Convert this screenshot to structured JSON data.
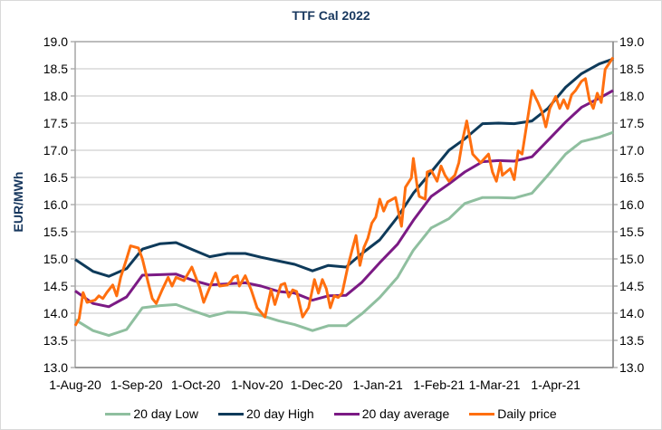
{
  "chart_data": {
    "type": "line",
    "title": "TTF Cal 2022",
    "ylabel": "EUR/MWh",
    "ylabel_right": "",
    "xlabel": "",
    "ylim": [
      13.0,
      19.0
    ],
    "yticks": [
      "13.0",
      "13.5",
      "14.0",
      "14.5",
      "15.0",
      "15.5",
      "16.0",
      "16.5",
      "17.0",
      "17.5",
      "18.0",
      "18.5",
      "19.0"
    ],
    "xlim": [
      "2020-08-01",
      "2021-04-30"
    ],
    "xticks": [
      {
        "date": "2020-08-01",
        "label": "1-Aug-20"
      },
      {
        "date": "2020-09-01",
        "label": "1-Sep-20"
      },
      {
        "date": "2020-10-01",
        "label": "1-Oct-20"
      },
      {
        "date": "2020-11-01",
        "label": "1-Nov-20"
      },
      {
        "date": "2020-12-01",
        "label": "1-Dec-20"
      },
      {
        "date": "2021-01-01",
        "label": "1-Jan-21"
      },
      {
        "date": "2021-02-01",
        "label": "1-Feb-21"
      },
      {
        "date": "2021-03-01",
        "label": "1-Mar-21"
      },
      {
        "date": "2021-04-01",
        "label": "1-Apr-21"
      }
    ],
    "grid": true,
    "legend_position": "bottom",
    "dual_axis_mirrored": true,
    "x": [
      "2020-08-01",
      "2020-08-10",
      "2020-08-18",
      "2020-08-27",
      "2020-09-04",
      "2020-09-13",
      "2020-09-21",
      "2020-09-30",
      "2020-10-08",
      "2020-10-17",
      "2020-10-26",
      "2020-11-03",
      "2020-11-12",
      "2020-11-20",
      "2020-11-29",
      "2020-12-07",
      "2020-12-16",
      "2020-12-24",
      "2021-01-02",
      "2021-01-11",
      "2021-01-19",
      "2021-01-28",
      "2021-02-06",
      "2021-02-14",
      "2021-02-23",
      "2021-03-03",
      "2021-03-11",
      "2021-03-20",
      "2021-03-28",
      "2021-04-06",
      "2021-04-14",
      "2021-04-23",
      "2021-04-30"
    ],
    "series": [
      {
        "name": "20 day Low",
        "color": "#8fbf9f",
        "values": [
          13.88,
          13.68,
          13.59,
          13.7,
          14.1,
          14.14,
          14.16,
          14.04,
          13.94,
          14.02,
          14.01,
          13.96,
          13.86,
          13.79,
          13.68,
          13.77,
          13.77,
          13.99,
          14.29,
          14.66,
          15.16,
          15.57,
          15.74,
          16.02,
          16.13,
          16.13,
          16.12,
          16.21,
          16.54,
          16.93,
          17.16,
          17.24,
          17.33
        ]
      },
      {
        "name": "20 day High",
        "color": "#0e3a5a",
        "values": [
          14.99,
          14.77,
          14.68,
          14.82,
          15.18,
          15.28,
          15.3,
          15.16,
          15.04,
          15.1,
          15.1,
          15.03,
          14.96,
          14.9,
          14.78,
          14.88,
          14.85,
          15.1,
          15.35,
          15.77,
          16.21,
          16.6,
          17.0,
          17.21,
          17.49,
          17.5,
          17.49,
          17.54,
          17.77,
          18.16,
          18.41,
          18.59,
          18.68
        ]
      },
      {
        "name": "20 day average",
        "color": "#7b1a84",
        "values": [
          14.41,
          14.18,
          14.12,
          14.3,
          14.7,
          14.71,
          14.72,
          14.6,
          14.52,
          14.54,
          14.56,
          14.5,
          14.4,
          14.37,
          14.24,
          14.32,
          14.33,
          14.57,
          14.93,
          15.27,
          15.71,
          16.15,
          16.38,
          16.6,
          16.79,
          16.81,
          16.8,
          16.88,
          17.18,
          17.52,
          17.79,
          17.96,
          18.1
        ]
      },
      {
        "name": "Daily price",
        "color": "#ff6f0f",
        "points": [
          [
            "2020-08-01",
            13.77
          ],
          [
            "2020-08-03",
            13.9
          ],
          [
            "2020-08-05",
            14.38
          ],
          [
            "2020-08-07",
            14.2
          ],
          [
            "2020-08-11",
            14.24
          ],
          [
            "2020-08-13",
            14.32
          ],
          [
            "2020-08-15",
            14.27
          ],
          [
            "2020-08-17",
            14.38
          ],
          [
            "2020-08-20",
            14.52
          ],
          [
            "2020-08-22",
            14.32
          ],
          [
            "2020-08-24",
            14.66
          ],
          [
            "2020-08-27",
            15.0
          ],
          [
            "2020-08-29",
            15.24
          ],
          [
            "2020-09-02",
            15.2
          ],
          [
            "2020-09-04",
            15.0
          ],
          [
            "2020-09-07",
            14.55
          ],
          [
            "2020-09-09",
            14.27
          ],
          [
            "2020-09-11",
            14.18
          ],
          [
            "2020-09-14",
            14.43
          ],
          [
            "2020-09-17",
            14.66
          ],
          [
            "2020-09-19",
            14.5
          ],
          [
            "2020-09-21",
            14.66
          ],
          [
            "2020-09-25",
            14.6
          ],
          [
            "2020-09-29",
            14.85
          ],
          [
            "2020-10-03",
            14.47
          ],
          [
            "2020-10-05",
            14.2
          ],
          [
            "2020-10-08",
            14.47
          ],
          [
            "2020-10-11",
            14.74
          ],
          [
            "2020-10-13",
            14.5
          ],
          [
            "2020-10-17",
            14.52
          ],
          [
            "2020-10-19",
            14.6
          ],
          [
            "2020-10-20",
            14.66
          ],
          [
            "2020-10-22",
            14.69
          ],
          [
            "2020-10-23",
            14.5
          ],
          [
            "2020-10-26",
            14.69
          ],
          [
            "2020-10-29",
            14.43
          ],
          [
            "2020-11-01",
            14.1
          ],
          [
            "2020-11-05",
            13.93
          ],
          [
            "2020-11-08",
            14.43
          ],
          [
            "2020-11-10",
            14.16
          ],
          [
            "2020-11-13",
            14.52
          ],
          [
            "2020-11-15",
            14.55
          ],
          [
            "2020-11-17",
            14.3
          ],
          [
            "2020-11-19",
            14.43
          ],
          [
            "2020-11-21",
            14.4
          ],
          [
            "2020-11-24",
            13.93
          ],
          [
            "2020-11-27",
            14.1
          ],
          [
            "2020-11-30",
            14.62
          ],
          [
            "2020-12-02",
            14.37
          ],
          [
            "2020-12-04",
            14.62
          ],
          [
            "2020-12-06",
            14.45
          ],
          [
            "2020-12-08",
            14.1
          ],
          [
            "2020-12-10",
            14.32
          ],
          [
            "2020-12-12",
            14.29
          ],
          [
            "2020-12-14",
            14.37
          ],
          [
            "2020-12-17",
            14.88
          ],
          [
            "2020-12-19",
            15.16
          ],
          [
            "2020-12-21",
            15.43
          ],
          [
            "2020-12-23",
            14.88
          ],
          [
            "2020-12-25",
            15.21
          ],
          [
            "2020-12-27",
            15.38
          ],
          [
            "2020-12-29",
            15.66
          ],
          [
            "2020-12-31",
            15.77
          ],
          [
            "2021-01-02",
            16.1
          ],
          [
            "2021-01-04",
            15.88
          ],
          [
            "2021-01-06",
            16.05
          ],
          [
            "2021-01-10",
            16.13
          ],
          [
            "2021-01-13",
            15.6
          ],
          [
            "2021-01-15",
            16.32
          ],
          [
            "2021-01-18",
            16.49
          ],
          [
            "2021-01-19",
            16.85
          ],
          [
            "2021-01-21",
            16.32
          ],
          [
            "2021-01-22",
            16.15
          ],
          [
            "2021-01-25",
            16.1
          ],
          [
            "2021-01-26",
            16.6
          ],
          [
            "2021-01-28",
            16.63
          ],
          [
            "2021-01-31",
            16.43
          ],
          [
            "2021-02-02",
            16.71
          ],
          [
            "2021-02-04",
            16.54
          ],
          [
            "2021-02-06",
            16.43
          ],
          [
            "2021-02-09",
            16.54
          ],
          [
            "2021-02-11",
            16.77
          ],
          [
            "2021-02-13",
            17.21
          ],
          [
            "2021-02-15",
            17.54
          ],
          [
            "2021-02-18",
            16.93
          ],
          [
            "2021-02-22",
            16.77
          ],
          [
            "2021-02-26",
            16.93
          ],
          [
            "2021-02-28",
            16.6
          ],
          [
            "2021-03-02",
            16.43
          ],
          [
            "2021-03-04",
            16.77
          ],
          [
            "2021-03-05",
            16.54
          ],
          [
            "2021-03-07",
            16.6
          ],
          [
            "2021-03-09",
            16.66
          ],
          [
            "2021-03-11",
            16.46
          ],
          [
            "2021-03-13",
            16.99
          ],
          [
            "2021-03-15",
            16.93
          ],
          [
            "2021-03-20",
            18.1
          ],
          [
            "2021-03-23",
            17.88
          ],
          [
            "2021-03-25",
            17.71
          ],
          [
            "2021-03-27",
            17.43
          ],
          [
            "2021-03-29",
            17.77
          ],
          [
            "2021-04-01",
            17.99
          ],
          [
            "2021-04-03",
            17.77
          ],
          [
            "2021-04-05",
            17.93
          ],
          [
            "2021-04-07",
            17.77
          ],
          [
            "2021-04-09",
            18.02
          ],
          [
            "2021-04-11",
            18.1
          ],
          [
            "2021-04-14",
            18.27
          ],
          [
            "2021-04-16",
            18.32
          ],
          [
            "2021-04-18",
            17.93
          ],
          [
            "2021-04-20",
            17.77
          ],
          [
            "2021-04-22",
            18.05
          ],
          [
            "2021-04-24",
            17.88
          ],
          [
            "2021-04-26",
            18.49
          ],
          [
            "2021-04-28",
            18.6
          ],
          [
            "2021-04-30",
            18.71
          ]
        ]
      }
    ]
  }
}
